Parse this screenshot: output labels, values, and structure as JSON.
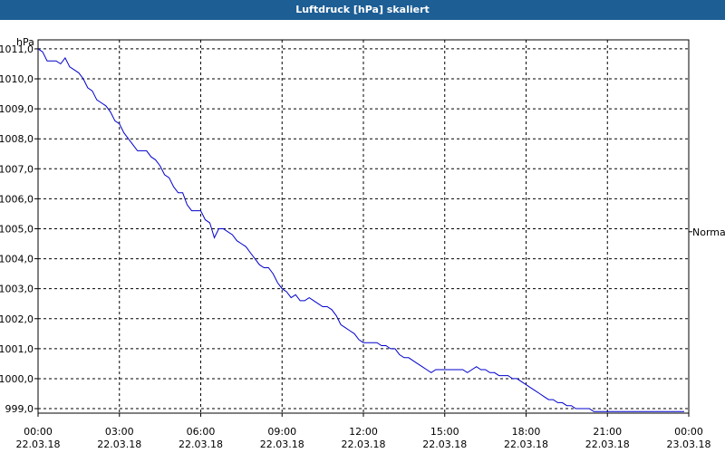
{
  "window": {
    "title": "Luftdruck [hPa] skaliert"
  },
  "chart_data": {
    "type": "line",
    "title": "Luftdruck [hPa] skaliert",
    "ylabel": "hPa",
    "xlabel": "",
    "ylim": [
      998.85,
      1011.3
    ],
    "xlim": [
      "2018-03-22T00:00",
      "2018-03-23T00:00"
    ],
    "grid": true,
    "y_ticks": [
      "999,0",
      "1000,0",
      "1001,0",
      "1002,0",
      "1003,0",
      "1004,0",
      "1005,0",
      "1006,0",
      "1007,0",
      "1008,0",
      "1009,0",
      "1010,0",
      "1011,0"
    ],
    "x_ticks": [
      {
        "time": "00:00",
        "date": "22.03.18"
      },
      {
        "time": "03:00",
        "date": "22.03.18"
      },
      {
        "time": "06:00",
        "date": "22.03.18"
      },
      {
        "time": "09:00",
        "date": "22.03.18"
      },
      {
        "time": "12:00",
        "date": "22.03.18"
      },
      {
        "time": "15:00",
        "date": "22.03.18"
      },
      {
        "time": "18:00",
        "date": "22.03.18"
      },
      {
        "time": "21:00",
        "date": "22.03.18"
      },
      {
        "time": "00:00",
        "date": "23.03.18"
      }
    ],
    "annotation": "Normal",
    "series_color": "#0000cc",
    "series": [
      {
        "x": [
          "00:00",
          "00:10",
          "00:20",
          "00:30",
          "00:40",
          "00:50",
          "01:00",
          "01:10",
          "01:20",
          "01:30",
          "01:40",
          "01:50",
          "02:00",
          "02:10",
          "02:20",
          "02:30",
          "02:40",
          "02:50",
          "03:00",
          "03:10",
          "03:20",
          "03:30",
          "03:40",
          "03:50",
          "04:00",
          "04:10",
          "04:20",
          "04:30",
          "04:40",
          "04:50",
          "05:00",
          "05:10",
          "05:20",
          "05:30",
          "05:40",
          "05:50",
          "06:00",
          "06:10",
          "06:20",
          "06:30",
          "06:40",
          "06:50",
          "07:00",
          "07:10",
          "07:20",
          "07:30",
          "07:40",
          "07:50",
          "08:00",
          "08:10",
          "08:20",
          "08:30",
          "08:40",
          "08:50",
          "09:00",
          "09:10",
          "09:20",
          "09:30",
          "09:40",
          "09:50",
          "10:00",
          "10:10",
          "10:20",
          "10:30",
          "10:40",
          "10:50",
          "11:00",
          "11:10",
          "11:20",
          "11:30",
          "11:40",
          "11:50",
          "12:00",
          "12:10",
          "12:20",
          "12:30",
          "12:40",
          "12:50",
          "13:00",
          "13:10",
          "13:20",
          "13:30",
          "13:40",
          "13:50",
          "14:00",
          "14:10",
          "14:20",
          "14:30",
          "14:40",
          "14:50",
          "15:00",
          "15:10",
          "15:20",
          "15:30",
          "15:40",
          "15:50",
          "16:00",
          "16:10",
          "16:20",
          "16:30",
          "16:40",
          "16:50",
          "17:00",
          "17:10",
          "17:20",
          "17:30",
          "17:40",
          "17:50",
          "18:00",
          "18:10",
          "18:20",
          "18:30",
          "18:40",
          "18:50",
          "19:00",
          "19:10",
          "19:20",
          "19:30",
          "19:40",
          "19:50",
          "20:00",
          "20:10",
          "20:20",
          "20:30",
          "20:40",
          "20:50",
          "21:00",
          "21:10",
          "21:20",
          "21:30",
          "21:40",
          "21:50",
          "22:00",
          "22:10",
          "22:20",
          "22:30",
          "22:40",
          "22:50",
          "23:00",
          "23:10",
          "23:20",
          "23:30",
          "23:40",
          "23:50"
        ],
        "y": [
          1011.0,
          1010.9,
          1010.6,
          1010.6,
          1010.6,
          1010.5,
          1010.7,
          1010.4,
          1010.3,
          1010.2,
          1010.0,
          1009.7,
          1009.6,
          1009.3,
          1009.2,
          1009.1,
          1008.9,
          1008.6,
          1008.5,
          1008.2,
          1008.0,
          1007.8,
          1007.6,
          1007.6,
          1007.6,
          1007.4,
          1007.3,
          1007.1,
          1006.8,
          1006.7,
          1006.4,
          1006.2,
          1006.2,
          1005.8,
          1005.6,
          1005.6,
          1005.6,
          1005.3,
          1005.2,
          1004.7,
          1005.0,
          1005.0,
          1004.9,
          1004.8,
          1004.6,
          1004.5,
          1004.4,
          1004.2,
          1004.0,
          1003.8,
          1003.7,
          1003.7,
          1003.5,
          1003.2,
          1003.0,
          1002.9,
          1002.7,
          1002.8,
          1002.6,
          1002.6,
          1002.7,
          1002.6,
          1002.5,
          1002.4,
          1002.4,
          1002.3,
          1002.1,
          1001.8,
          1001.7,
          1001.6,
          1001.5,
          1001.3,
          1001.2,
          1001.2,
          1001.2,
          1001.2,
          1001.1,
          1001.1,
          1001.0,
          1001.0,
          1000.8,
          1000.7,
          1000.7,
          1000.6,
          1000.5,
          1000.4,
          1000.3,
          1000.2,
          1000.3,
          1000.3,
          1000.3,
          1000.3,
          1000.3,
          1000.3,
          1000.3,
          1000.2,
          1000.3,
          1000.4,
          1000.3,
          1000.3,
          1000.2,
          1000.2,
          1000.1,
          1000.1,
          1000.1,
          1000.0,
          1000.0,
          999.9,
          999.8,
          999.7,
          999.6,
          999.5,
          999.4,
          999.3,
          999.3,
          999.2,
          999.2,
          999.1,
          999.1,
          999.0,
          999.0,
          999.0,
          999.0,
          998.9,
          998.9,
          998.9,
          998.9,
          998.9,
          998.9,
          998.9,
          998.9,
          998.9,
          998.9,
          998.9,
          998.9,
          998.9,
          998.9,
          998.9,
          998.9,
          998.9,
          998.9,
          998.9,
          998.9,
          998.9
        ]
      }
    ]
  }
}
